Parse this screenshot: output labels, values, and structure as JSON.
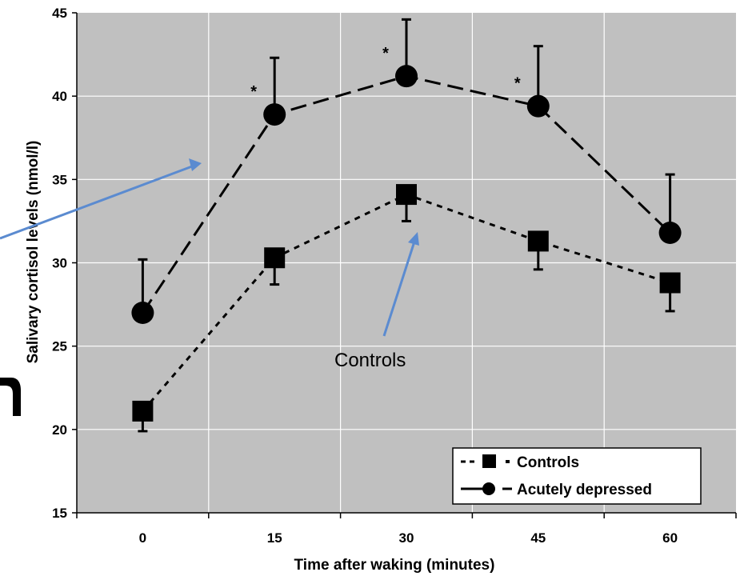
{
  "chart_data": {
    "type": "line",
    "title": "",
    "xlabel": "Time after waking (minutes)",
    "ylabel": "Salivary cortisol levels (nmol/l)",
    "x": [
      0,
      15,
      30,
      45,
      60
    ],
    "x_tick_labels": [
      "0",
      "15",
      "30",
      "45",
      "60"
    ],
    "ylim": [
      15,
      45
    ],
    "y_ticks": [
      15,
      20,
      25,
      30,
      35,
      40,
      45
    ],
    "y_tick_labels": [
      "15",
      "20",
      "25",
      "30",
      "35",
      "40",
      "45"
    ],
    "grid": true,
    "background": "#c0c0c0",
    "series": [
      {
        "name": "Controls",
        "marker": "square",
        "line_style": "dotted",
        "values": [
          21.1,
          30.3,
          34.1,
          31.3,
          28.8
        ],
        "error_upper": [
          null,
          null,
          null,
          null,
          null
        ],
        "error_lower": [
          19.9,
          28.7,
          32.5,
          29.6,
          27.1
        ]
      },
      {
        "name": "Acutely depressed",
        "marker": "circle",
        "line_style": "dashed",
        "values": [
          27.0,
          38.9,
          41.2,
          39.4,
          31.8
        ],
        "error_upper": [
          30.2,
          42.3,
          44.6,
          43.0,
          35.3
        ],
        "error_lower": [
          null,
          null,
          null,
          null,
          null
        ]
      }
    ],
    "significance_markers": [
      {
        "text": "*",
        "x": 15
      },
      {
        "text": "*",
        "x": 30
      },
      {
        "text": "*",
        "x": 45
      }
    ],
    "legend": {
      "placement": "bottom-right",
      "entries": [
        "Controls",
        "Acutely depressed"
      ],
      "entry_prefixes": [
        "- ■ ·",
        "—● -"
      ]
    },
    "annotations": [
      {
        "text": "Controls"
      }
    ],
    "arrow_color": "#5b8bd0"
  }
}
